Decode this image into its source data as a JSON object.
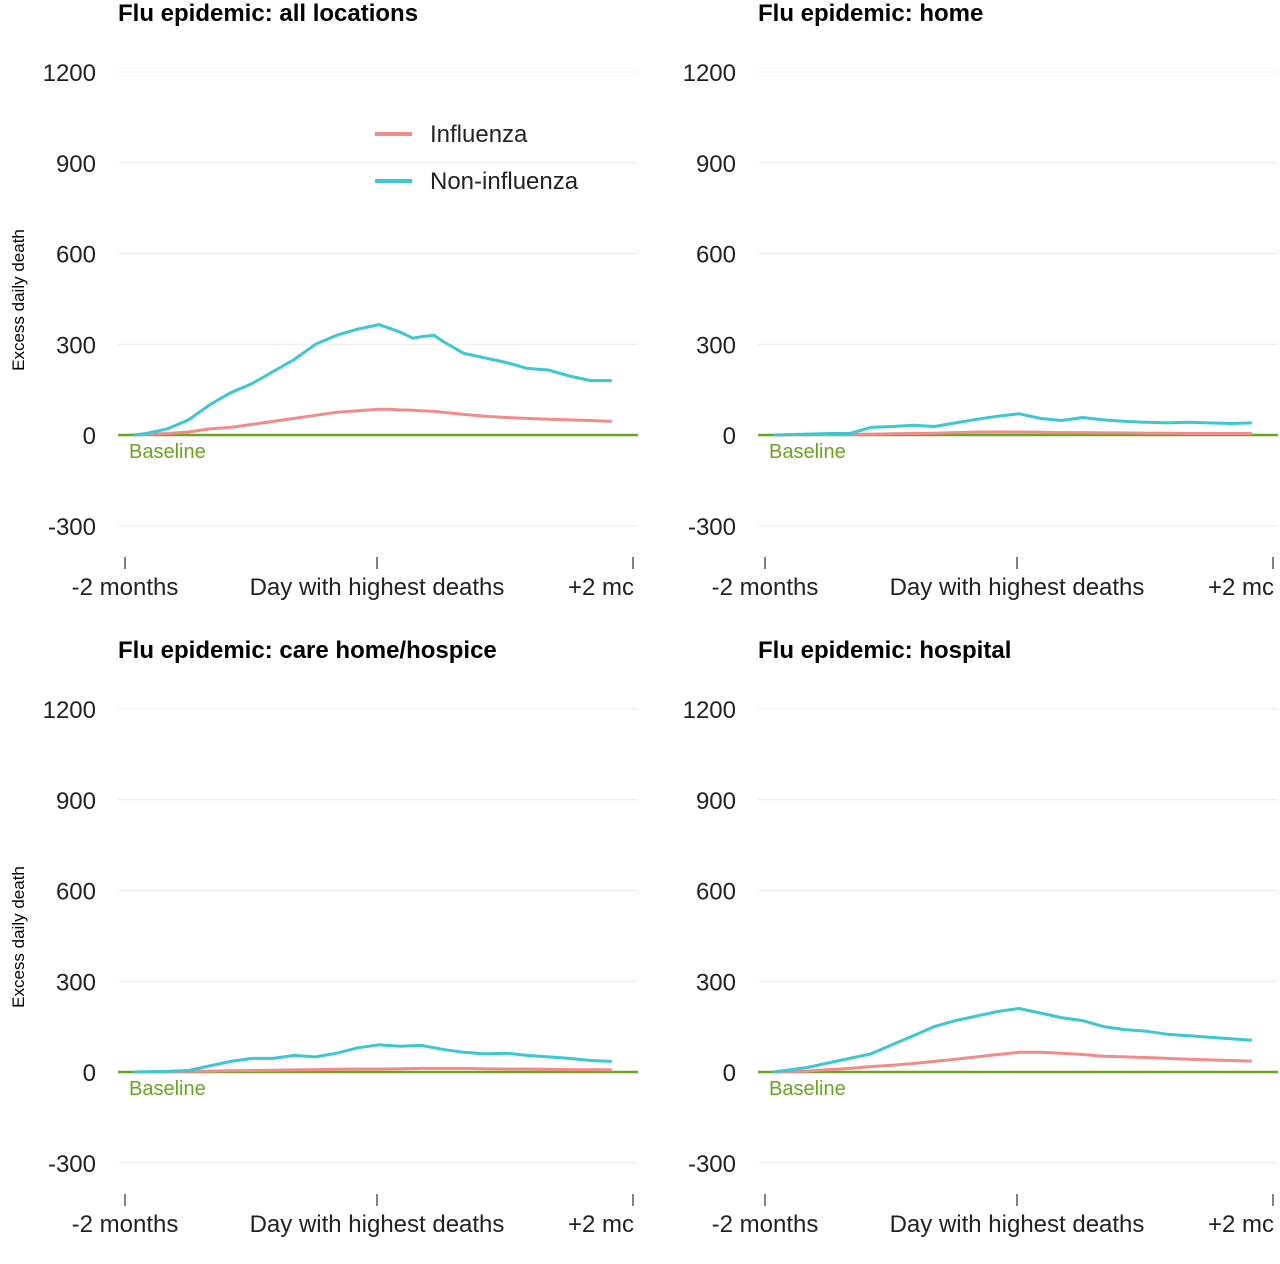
{
  "colors": {
    "influenza": "#f08c8c",
    "non_influenza": "#3cc8d2",
    "baseline": "#6aa51e",
    "grid": "#ebebeb",
    "axis_text": "#000000"
  },
  "y_axis_label": "Excess daily death",
  "baseline_label": "Baseline",
  "legend": {
    "position": "top-right",
    "items": [
      "Influenza",
      "Non-influenza"
    ]
  },
  "chart_data": [
    {
      "type": "line",
      "title": "Flu epidemic: all locations",
      "ylabel": "Excess daily death",
      "ylim": [
        -400,
        1250
      ],
      "yticks": [
        1200,
        900,
        600,
        300,
        0,
        -300
      ],
      "xticks": [
        "-2 months",
        "Day with highest deaths",
        "+2 mc"
      ],
      "x": [
        -58,
        -55,
        -50,
        -45,
        -40,
        -35,
        -30,
        -25,
        -20,
        -15,
        -10,
        -5,
        0,
        2,
        5,
        8,
        10,
        13,
        15,
        20,
        25,
        30,
        35,
        40,
        45,
        50,
        55
      ],
      "series": [
        {
          "name": "Influenza",
          "values": [
            0,
            2,
            5,
            10,
            20,
            25,
            35,
            45,
            55,
            65,
            75,
            80,
            85,
            85,
            83,
            82,
            80,
            78,
            75,
            68,
            62,
            58,
            55,
            52,
            50,
            48,
            45
          ]
        },
        {
          "name": "Non-influenza",
          "values": [
            0,
            5,
            20,
            50,
            100,
            140,
            170,
            210,
            250,
            300,
            330,
            350,
            365,
            355,
            340,
            320,
            325,
            330,
            310,
            270,
            255,
            240,
            220,
            215,
            195,
            180,
            180
          ]
        }
      ]
    },
    {
      "type": "line",
      "title": "Flu epidemic: home",
      "ylabel": "",
      "ylim": [
        -400,
        1250
      ],
      "yticks": [
        1200,
        900,
        600,
        300,
        0,
        -300
      ],
      "xticks": [
        "-2 months",
        "Day with highest deaths",
        "+2 mc"
      ],
      "x": [
        -58,
        -50,
        -45,
        -40,
        -35,
        -30,
        -25,
        -20,
        -15,
        -10,
        -5,
        0,
        5,
        10,
        15,
        20,
        25,
        30,
        35,
        40,
        45,
        50,
        55
      ],
      "series": [
        {
          "name": "Influenza",
          "values": [
            0,
            1,
            2,
            2,
            3,
            4,
            5,
            6,
            8,
            10,
            10,
            10,
            9,
            8,
            8,
            7,
            7,
            6,
            6,
            5,
            5,
            5,
            5
          ]
        },
        {
          "name": "Non-influenza",
          "values": [
            0,
            3,
            5,
            5,
            25,
            28,
            32,
            28,
            40,
            52,
            62,
            70,
            55,
            48,
            58,
            50,
            45,
            42,
            40,
            42,
            40,
            38,
            40
          ]
        }
      ]
    },
    {
      "type": "line",
      "title": "Flu epidemic: care home/hospice",
      "ylabel": "Excess daily death",
      "ylim": [
        -400,
        1250
      ],
      "yticks": [
        1200,
        900,
        600,
        300,
        0,
        -300
      ],
      "xticks": [
        "-2 months",
        "Day with highest deaths",
        "+2 mc"
      ],
      "x": [
        -58,
        -50,
        -45,
        -40,
        -35,
        -30,
        -25,
        -20,
        -15,
        -10,
        -5,
        0,
        5,
        10,
        15,
        20,
        25,
        30,
        35,
        40,
        45,
        50,
        55
      ],
      "series": [
        {
          "name": "Influenza",
          "values": [
            0,
            1,
            2,
            3,
            4,
            5,
            6,
            7,
            8,
            9,
            10,
            10,
            11,
            12,
            12,
            12,
            11,
            10,
            10,
            9,
            8,
            8,
            7
          ]
        },
        {
          "name": "Non-influenza",
          "values": [
            0,
            2,
            5,
            20,
            35,
            45,
            45,
            55,
            50,
            62,
            80,
            90,
            85,
            88,
            75,
            65,
            60,
            62,
            55,
            50,
            45,
            38,
            35
          ]
        }
      ]
    },
    {
      "type": "line",
      "title": "Flu epidemic: hospital",
      "ylabel": "",
      "ylim": [
        -400,
        1250
      ],
      "yticks": [
        1200,
        900,
        600,
        300,
        0,
        -300
      ],
      "xticks": [
        "-2 months",
        "Day with highest deaths",
        "+2 mc"
      ],
      "x": [
        -58,
        -50,
        -45,
        -40,
        -35,
        -30,
        -25,
        -20,
        -15,
        -10,
        -5,
        0,
        5,
        10,
        15,
        20,
        25,
        30,
        35,
        40,
        45,
        50,
        55
      ],
      "series": [
        {
          "name": "Influenza",
          "values": [
            0,
            3,
            8,
            12,
            18,
            22,
            28,
            35,
            42,
            50,
            58,
            65,
            65,
            62,
            58,
            52,
            50,
            48,
            45,
            42,
            40,
            38,
            36
          ]
        },
        {
          "name": "Non-influenza",
          "values": [
            0,
            15,
            30,
            45,
            60,
            90,
            120,
            150,
            170,
            185,
            200,
            210,
            195,
            180,
            170,
            150,
            140,
            135,
            125,
            120,
            115,
            110,
            105
          ]
        }
      ]
    }
  ]
}
